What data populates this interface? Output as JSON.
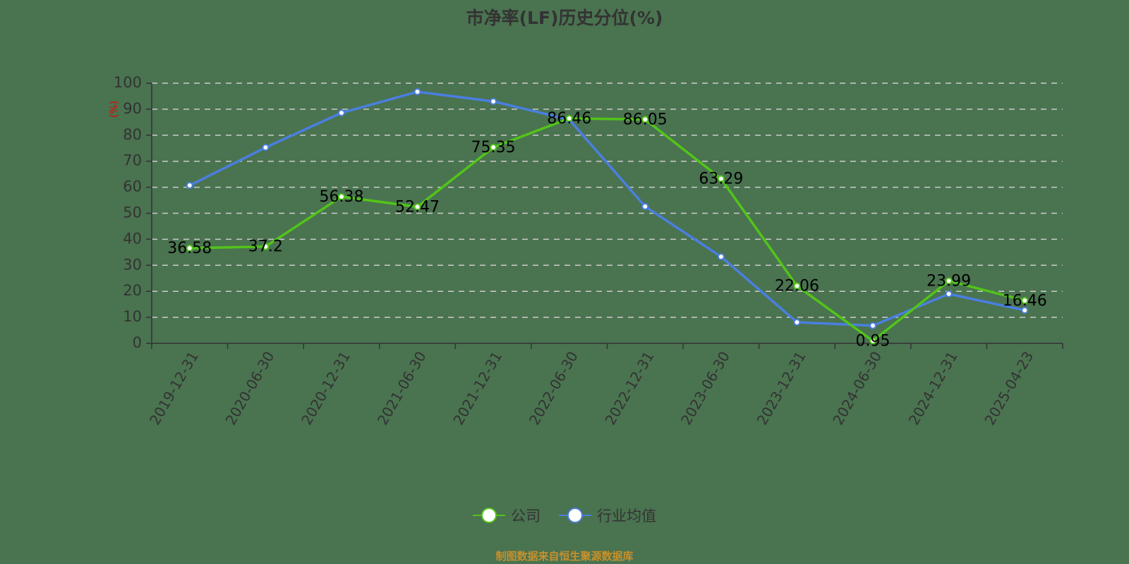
{
  "title": "市净率(LF)历史分位(%)",
  "y_axis_unit": "(%)",
  "legend": [
    {
      "label": "公司",
      "color": "#52c41a"
    },
    {
      "label": "行业均值",
      "color": "#4a7fe0"
    }
  ],
  "source": "制图数据来自恒生聚源数据库",
  "colors": {
    "background": "#4a7350",
    "company": "#52c41a",
    "industry": "#4a7fe0",
    "grid": "#cccccc",
    "axis": "#333333",
    "unit": "#e00000",
    "source": "#c8902b"
  },
  "chart_data": {
    "type": "line",
    "title": "市净率(LF)历史分位(%)",
    "xlabel": "",
    "ylabel": "(%)",
    "ylim": [
      0,
      100
    ],
    "yticks": [
      0,
      10,
      20,
      30,
      40,
      50,
      60,
      70,
      80,
      90,
      100
    ],
    "grid": true,
    "legend_position": "bottom",
    "categories": [
      "2019-12-31",
      "2020-06-30",
      "2020-12-31",
      "2021-06-30",
      "2021-12-31",
      "2022-06-30",
      "2022-12-31",
      "2023-06-30",
      "2023-12-31",
      "2024-06-30",
      "2024-12-31",
      "2025-04-23"
    ],
    "series": [
      {
        "name": "公司",
        "values": [
          36.58,
          37.2,
          56.38,
          52.47,
          75.35,
          86.46,
          86.05,
          63.29,
          22.06,
          0.95,
          23.99,
          16.46
        ],
        "labeled": true
      },
      {
        "name": "行业均值",
        "values": [
          60.7,
          75.3,
          88.6,
          96.7,
          93.0,
          86.0,
          52.6,
          33.3,
          8.1,
          6.8,
          19.0,
          12.7
        ],
        "labeled": false
      }
    ]
  }
}
